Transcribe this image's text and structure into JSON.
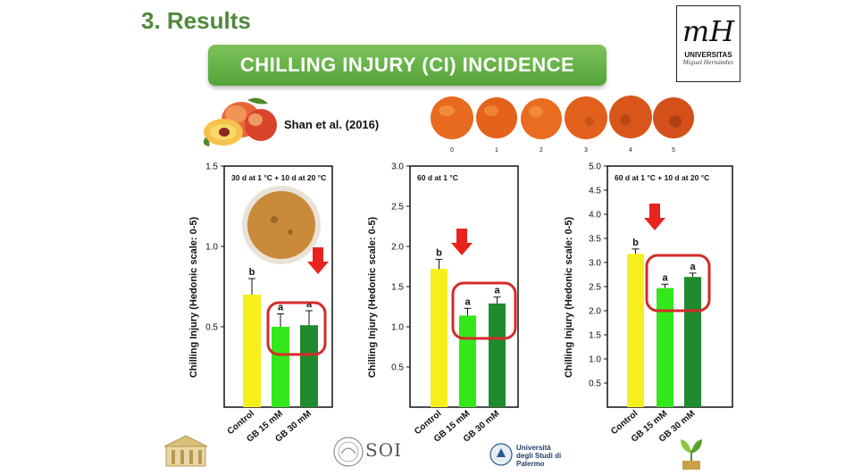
{
  "header": {
    "heading": "3. Results",
    "banner": "CHILLING INJURY (CI) INCIDENCE",
    "citation": "Shan et al. (2016)"
  },
  "logos": {
    "umh_mark": "mH",
    "umh_name": "UNIVERSITAS",
    "umh_sub": "Miguel Hernández",
    "soi": "SOI",
    "palermo": "Università degli Studi di Palermo"
  },
  "scale": {
    "labels": [
      "0",
      "1",
      "2",
      "3",
      "4",
      "5"
    ]
  },
  "colors": {
    "control": "#f7ef1c",
    "gb15": "#33e81a",
    "gb30": "#1f8a2e",
    "highlight": "#d42a2a",
    "arrow": "#e8231d"
  },
  "chart_data": [
    {
      "type": "bar",
      "title": "30 d at 1 °C + 10 d at 20 °C",
      "ylabel": "Chilling Injury (Hedonic scale: 0-5)",
      "categories": [
        "Control",
        "GB 15 mM",
        "GB 30 mM"
      ],
      "values": [
        0.7,
        0.5,
        0.51
      ],
      "errors": [
        0.1,
        0.08,
        0.09
      ],
      "letters": [
        "b",
        "a",
        "a"
      ],
      "ylim": [
        0,
        1.5
      ],
      "yticks": [
        "0.5",
        "1.0",
        "1.5"
      ],
      "ytick_values": [
        0.5,
        1.0,
        1.5
      ]
    },
    {
      "type": "bar",
      "title": "60 d at 1 °C",
      "ylabel": "Chilling Injury (Hedonic scale: 0-5)",
      "categories": [
        "Control",
        "GB 15 mM",
        "GB 30 mM"
      ],
      "values": [
        1.72,
        1.14,
        1.29
      ],
      "errors": [
        0.12,
        0.09,
        0.08
      ],
      "letters": [
        "b",
        "a",
        "a"
      ],
      "ylim": [
        0,
        3.0
      ],
      "yticks": [
        "0.5",
        "1.0",
        "1.5",
        "2.0",
        "2.5",
        "3.0"
      ],
      "ytick_values": [
        0.5,
        1.0,
        1.5,
        2.0,
        2.5,
        3.0
      ]
    },
    {
      "type": "bar",
      "title": "60 d at 1 °C + 10 d at 20 °C",
      "ylabel": "Chilling Injury (Hedonic scale: 0-5)",
      "categories": [
        "Control",
        "GB 15 mM",
        "GB 30 mM"
      ],
      "values": [
        3.18,
        2.47,
        2.7
      ],
      "errors": [
        0.1,
        0.08,
        0.08
      ],
      "letters": [
        "b",
        "a",
        "a"
      ],
      "ylim": [
        0,
        5.0
      ],
      "yticks": [
        "0.5",
        "1.0",
        "1.5",
        "2.0",
        "2.5",
        "3.0",
        "3.5",
        "4.0",
        "4.5",
        "5.0"
      ],
      "ytick_values": [
        0.5,
        1.0,
        1.5,
        2.0,
        2.5,
        3.0,
        3.5,
        4.0,
        4.5,
        5.0
      ]
    }
  ]
}
